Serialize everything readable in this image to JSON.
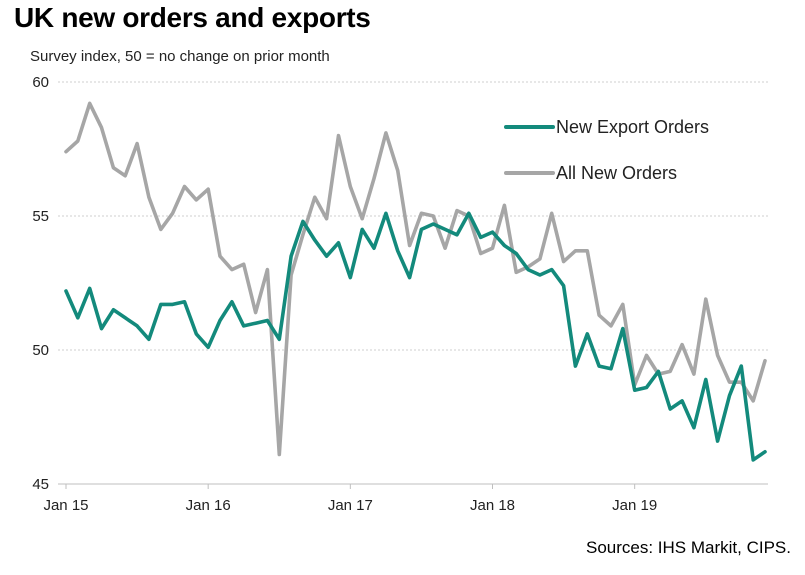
{
  "chart_data": {
    "type": "line",
    "title": "UK new orders and exports",
    "subtitle": "Survey index, 50 = no change on prior month",
    "source": "Sources: IHS Markit, CIPS.",
    "ylim": [
      45,
      60
    ],
    "y_ticks": [
      "45",
      "50",
      "55",
      "60"
    ],
    "x_ticks": [
      {
        "index": 0,
        "label": "Jan 15"
      },
      {
        "index": 12,
        "label": "Jan 16"
      },
      {
        "index": 24,
        "label": "Jan 17"
      },
      {
        "index": 36,
        "label": "Jan 18"
      },
      {
        "index": 48,
        "label": "Jan 19"
      }
    ],
    "grid": true,
    "legend_position": "top-right",
    "series": [
      {
        "name": "New Export Orders",
        "color": "#138a7c",
        "values": [
          52.2,
          51.2,
          52.3,
          50.8,
          51.5,
          51.2,
          50.9,
          50.4,
          51.7,
          51.7,
          51.8,
          50.6,
          50.1,
          51.1,
          51.8,
          50.9,
          51.0,
          51.1,
          50.4,
          53.5,
          54.8,
          54.1,
          53.5,
          54.0,
          52.7,
          54.5,
          53.8,
          55.1,
          53.7,
          52.7,
          54.5,
          54.7,
          54.5,
          54.3,
          55.1,
          54.2,
          54.4,
          53.9,
          53.6,
          53.0,
          52.8,
          53.0,
          52.4,
          49.4,
          50.6,
          49.4,
          49.3,
          50.8,
          48.5,
          48.6,
          49.2,
          47.8,
          48.1,
          47.1,
          48.9,
          46.6,
          48.3,
          49.4,
          45.9,
          46.2
        ]
      },
      {
        "name": "All New Orders",
        "color": "#a6a6a6",
        "values": [
          57.4,
          57.8,
          59.2,
          58.3,
          56.8,
          56.5,
          57.7,
          55.7,
          54.5,
          55.1,
          56.1,
          55.6,
          56.0,
          53.5,
          53.0,
          53.2,
          51.4,
          53.0,
          46.1,
          52.8,
          54.3,
          55.7,
          54.9,
          58.0,
          56.1,
          54.9,
          56.4,
          58.1,
          56.7,
          53.9,
          55.1,
          55.0,
          53.8,
          55.2,
          55.0,
          53.6,
          53.8,
          55.4,
          52.9,
          53.1,
          53.4,
          55.1,
          53.3,
          53.7,
          53.7,
          51.3,
          50.9,
          51.7,
          48.7,
          49.8,
          49.1,
          49.2,
          50.2,
          49.1,
          51.9,
          49.8,
          48.8,
          48.8,
          48.1,
          49.6
        ]
      }
    ]
  }
}
